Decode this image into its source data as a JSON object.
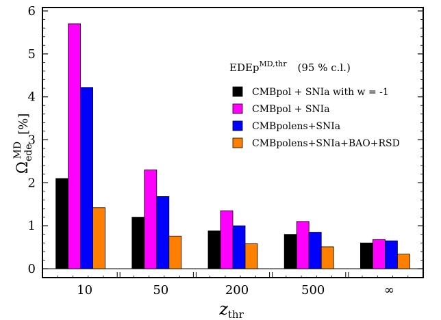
{
  "chart_data": {
    "type": "bar",
    "categories": [
      "10",
      "50",
      "200",
      "500",
      "∞"
    ],
    "series": [
      {
        "name": "CMBpol + SNIa with w = -1",
        "color": "#000000",
        "values": [
          2.1,
          1.2,
          0.88,
          0.8,
          0.6
        ]
      },
      {
        "name": "CMBpol + SNIa",
        "color": "#ff00ff",
        "values": [
          5.7,
          2.3,
          1.35,
          1.1,
          0.68
        ]
      },
      {
        "name": "CMBpolens+SNIa",
        "color": "#0000ff",
        "values": [
          4.22,
          1.68,
          1.0,
          0.85,
          0.65
        ]
      },
      {
        "name": "CMBpolens+SNIa+BAO+RSD",
        "color": "#ff8000",
        "values": [
          1.42,
          0.76,
          0.58,
          0.51,
          0.34
        ]
      }
    ],
    "ylim": [
      0,
      6
    ],
    "yticks": [
      0,
      1,
      2,
      3,
      4,
      5,
      6
    ],
    "xlabel": {
      "main": "z",
      "sub": "thr"
    },
    "ylabel": {
      "main": "Ω",
      "sup": "MD",
      "sub": "ede",
      "unit": "[%]"
    },
    "legend": {
      "position": "top-right",
      "title": {
        "main": "EDEp",
        "sup": "MD,thr",
        "note": "(95 % c.l.)"
      }
    }
  }
}
